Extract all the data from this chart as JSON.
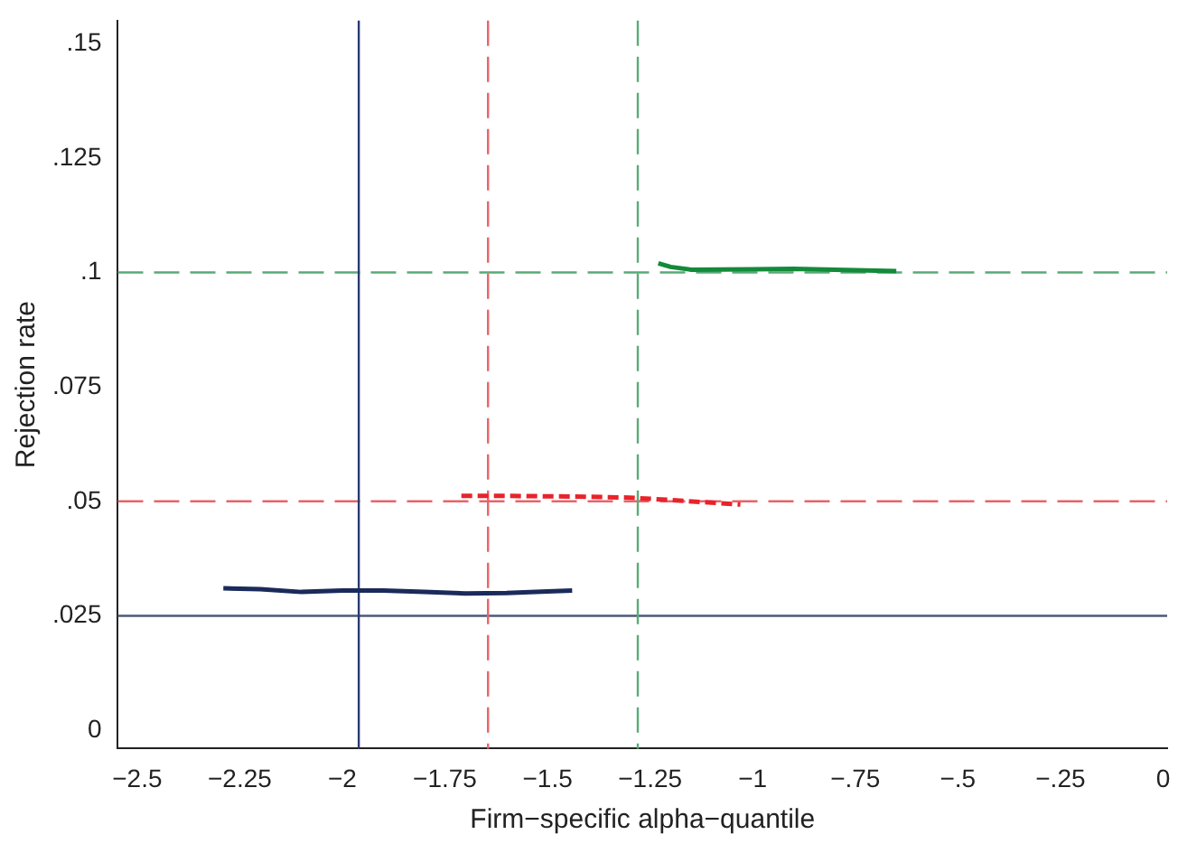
{
  "chart_data": {
    "type": "line",
    "xlabel": "Firm−specific alpha−quantile",
    "ylabel": "Rejection rate",
    "xlim": [
      -2.547,
      0.01
    ],
    "ylim": [
      -0.004,
      0.155
    ],
    "xticks": [
      {
        "value": -2.5,
        "label": "−2.5"
      },
      {
        "value": -2.25,
        "label": "−2.25"
      },
      {
        "value": -2,
        "label": "−2"
      },
      {
        "value": -1.75,
        "label": "−1.75"
      },
      {
        "value": -1.5,
        "label": "−1.5"
      },
      {
        "value": -1.25,
        "label": "−1.25"
      },
      {
        "value": -1,
        "label": "−1"
      },
      {
        "value": -0.75,
        "label": "−.75"
      },
      {
        "value": -0.5,
        "label": "−.5"
      },
      {
        "value": -0.25,
        "label": "−.25"
      },
      0
    ],
    "yticks": [
      0,
      {
        "value": 0.025,
        "label": ".025"
      },
      {
        "value": 0.05,
        "label": ".05"
      },
      {
        "value": 0.075,
        "label": ".075"
      },
      {
        "value": 0.1,
        "label": ".1"
      },
      {
        "value": 0.125,
        "label": ".125"
      },
      {
        "value": 0.15,
        "label": ".15"
      }
    ],
    "grid": false,
    "legend": false,
    "marker": "none",
    "series": [
      {
        "color": "#1a2a5a",
        "line_style": "solid",
        "x": [
          -2.29,
          -2.2,
          -2.1,
          -2.0,
          -1.9,
          -1.8,
          -1.7,
          -1.6,
          -1.5,
          -1.44
        ],
        "values": [
          0.031,
          0.0308,
          0.0302,
          0.0305,
          0.0305,
          0.0302,
          0.0299,
          0.03,
          0.0303,
          0.0305
        ]
      },
      {
        "color": "#e8232a",
        "line_style": "dashed",
        "x": [
          -1.71,
          -1.6,
          -1.5,
          -1.4,
          -1.3,
          -1.2,
          -1.1,
          -1.03
        ],
        "values": [
          0.0512,
          0.0512,
          0.0511,
          0.051,
          0.0508,
          0.0503,
          0.0497,
          0.0493
        ]
      },
      {
        "color": "#138a3a",
        "line_style": "solid",
        "x": [
          -1.23,
          -1.2,
          -1.15,
          -1.0,
          -0.9,
          -0.8,
          -0.7,
          -0.65
        ],
        "values": [
          0.102,
          0.1012,
          0.1006,
          0.1007,
          0.1008,
          0.1006,
          0.1004,
          0.1003
        ]
      }
    ],
    "ref_lines": [
      {
        "axis": "y",
        "value": 0.1,
        "color": "#5aaa78",
        "line_style": "dashed"
      },
      {
        "axis": "y",
        "value": 0.05,
        "color": "#e8636a",
        "line_style": "dashed"
      },
      {
        "axis": "y",
        "value": 0.025,
        "color": "#4a5a78",
        "line_style": "solid"
      },
      {
        "axis": "x",
        "value": -1.96,
        "color": "#2a3a70",
        "line_style": "solid"
      },
      {
        "axis": "x",
        "value": -1.645,
        "color": "#e8636a",
        "line_style": "dashed"
      },
      {
        "axis": "x",
        "value": -1.28,
        "color": "#5aaa78",
        "line_style": "dashed"
      }
    ]
  }
}
